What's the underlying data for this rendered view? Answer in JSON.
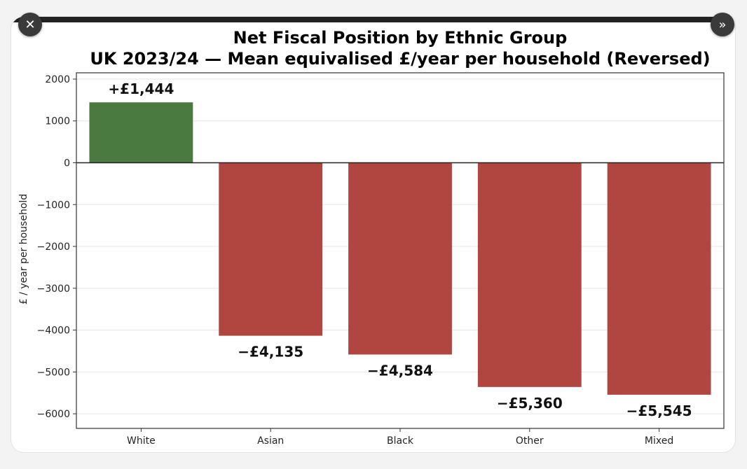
{
  "viewer": {
    "close_glyph": "✕",
    "next_glyph": "»"
  },
  "chart_data": {
    "type": "bar",
    "title": "Net Fiscal Position by Ethnic Group",
    "subtitle": "UK 2023/24 — Mean equivalised £/year per household (Reversed)",
    "xlabel": "",
    "ylabel": "£ / year per household",
    "categories": [
      "White",
      "Asian",
      "Black",
      "Other",
      "Mixed"
    ],
    "values": [
      1444,
      -4135,
      -4584,
      -5360,
      -5545
    ],
    "data_labels": [
      "+£1,444",
      "−£4,135",
      "−£4,584",
      "−£5,360",
      "−£5,545"
    ],
    "colors": [
      "#4a7a3f",
      "#b0463f",
      "#b0463f",
      "#b0463f",
      "#b0463f"
    ],
    "ylim": [
      -6350,
      2150
    ],
    "yticks": [
      2000,
      1000,
      0,
      -1000,
      -2000,
      -3000,
      -4000,
      -5000,
      -6000
    ],
    "ytick_labels": [
      "2000",
      "1000",
      "0",
      "−1000",
      "−2000",
      "−3000",
      "−4000",
      "−5000",
      "−6000"
    ],
    "grid": true
  }
}
